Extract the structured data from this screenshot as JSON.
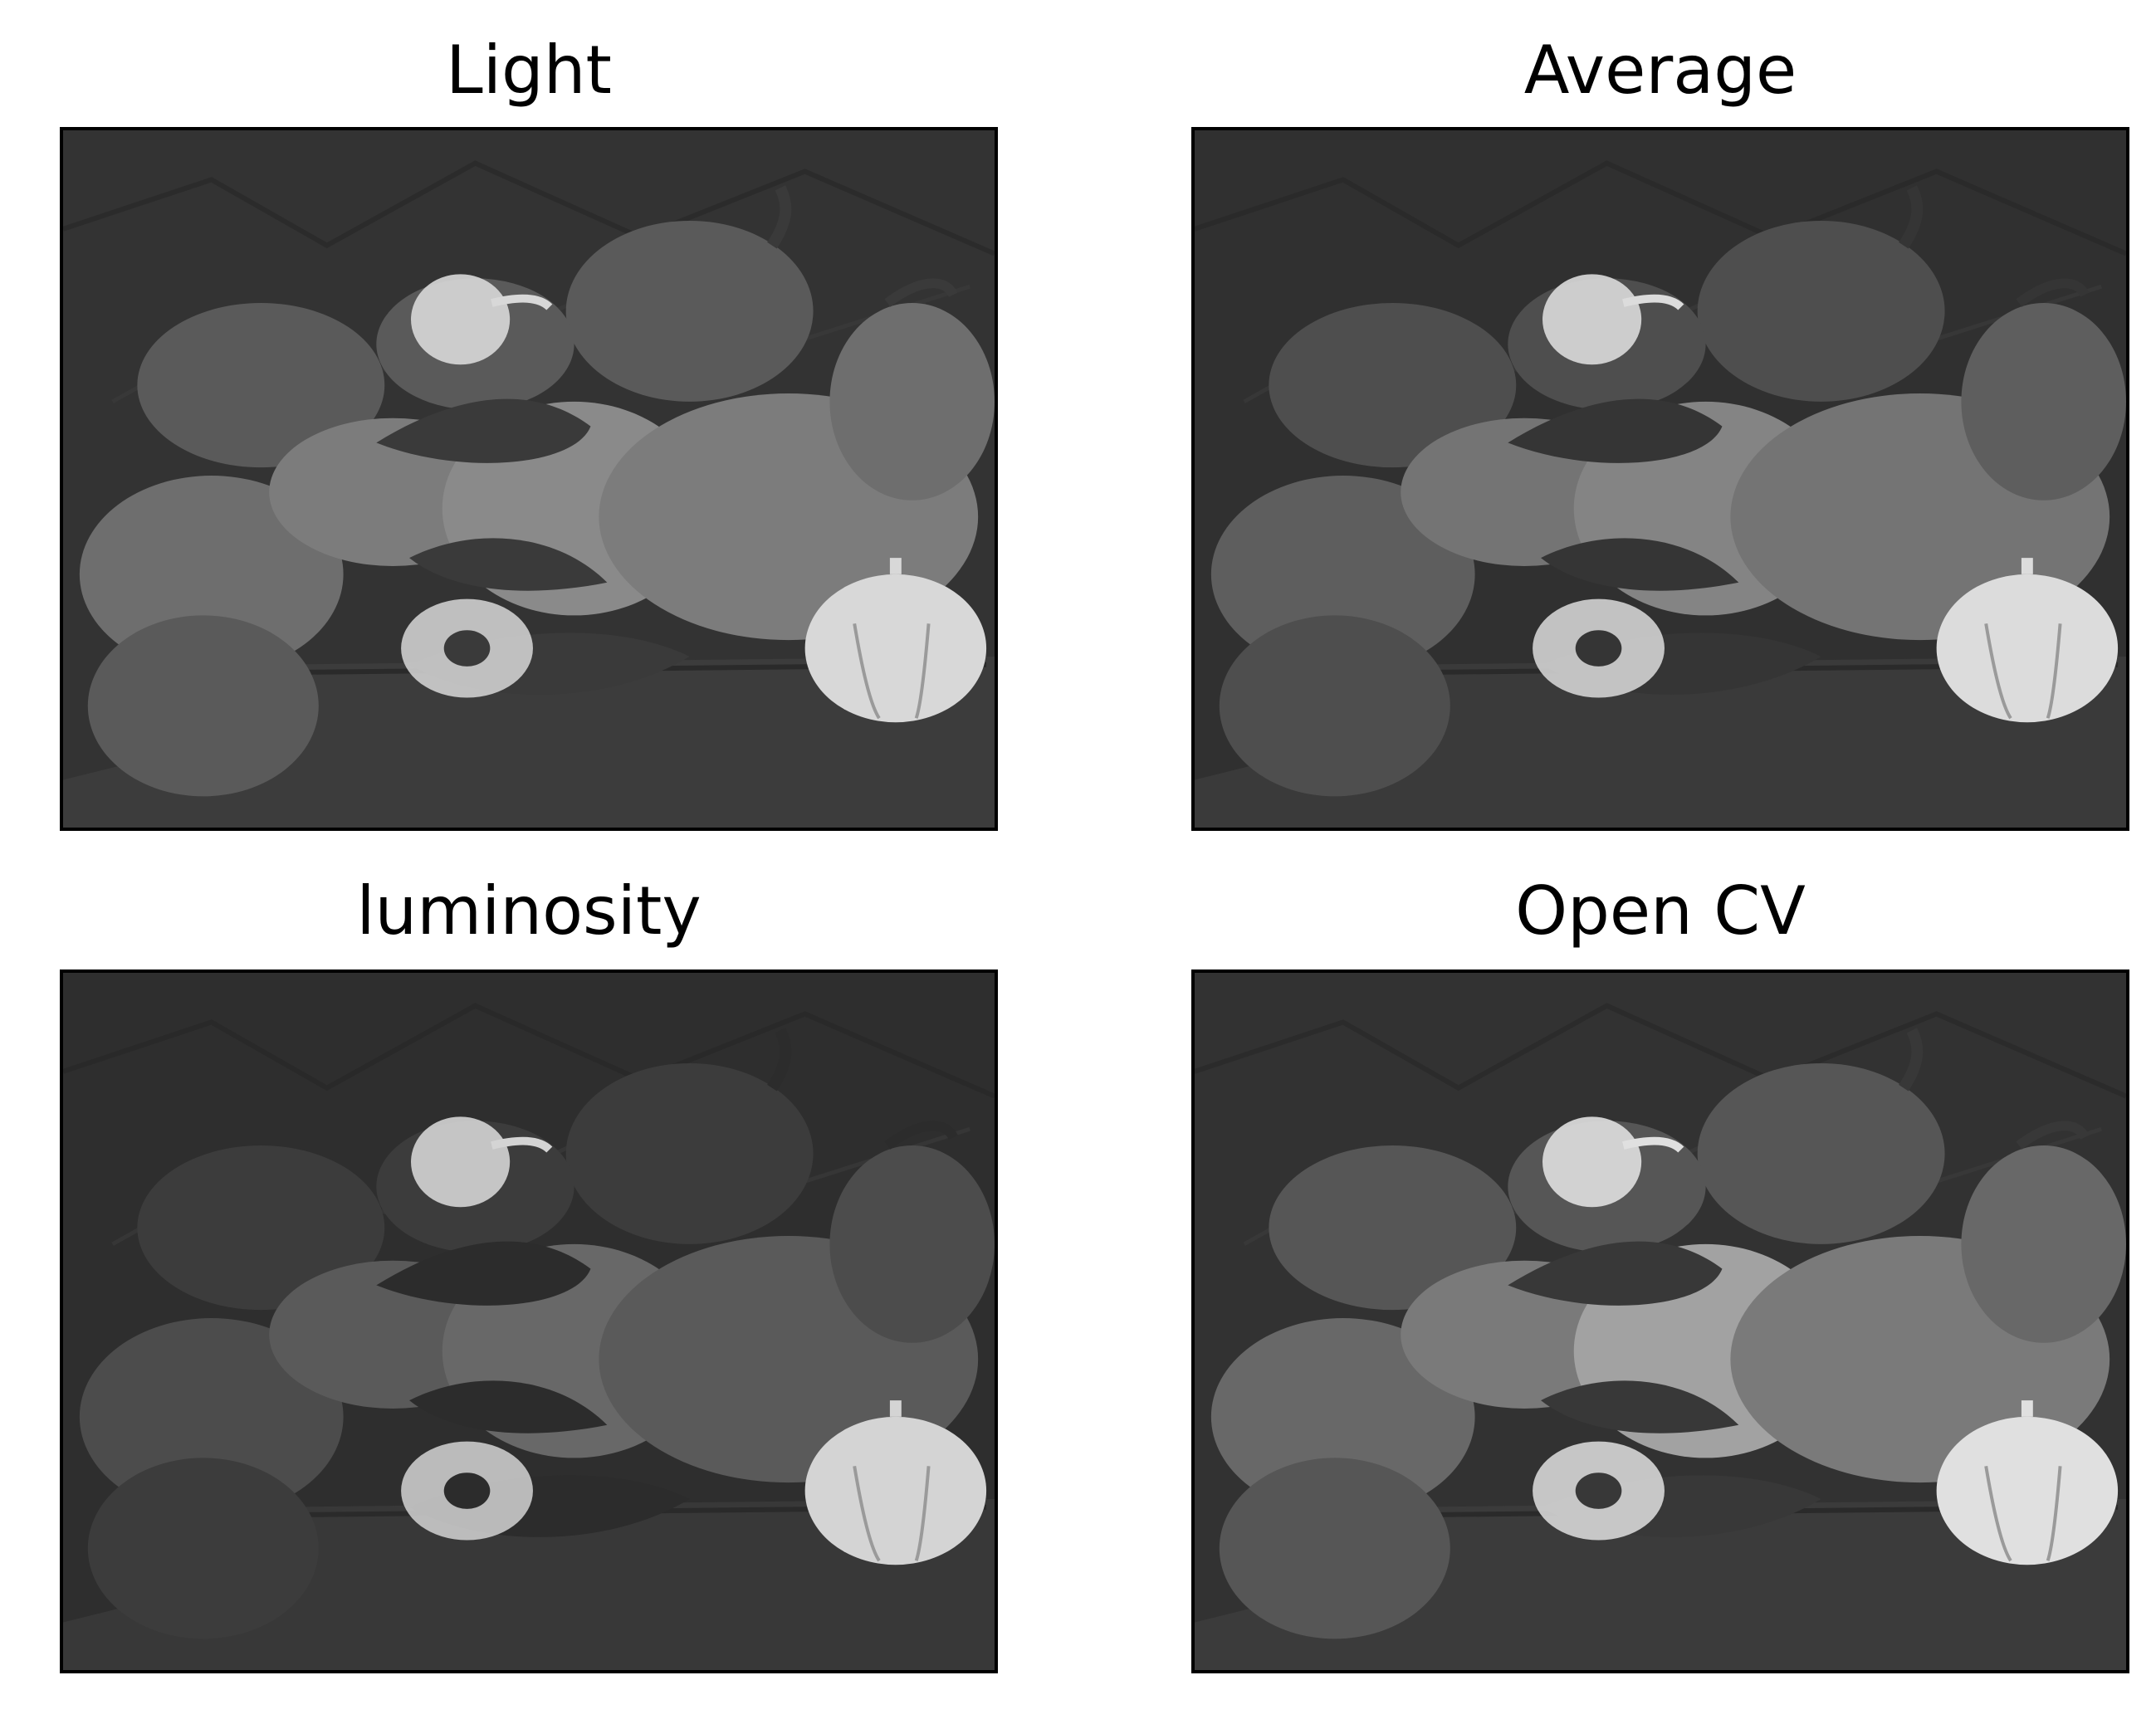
{
  "figure": {
    "panels": [
      {
        "title": "Light"
      },
      {
        "title": "Average"
      },
      {
        "title": "luminosity"
      },
      {
        "title": "Open CV"
      }
    ]
  },
  "palettes": {
    "light": {
      "bg": "#333333",
      "table": "#3c3c3c",
      "p1": "#6e6e6e",
      "p2": "#7c7c7c",
      "p3": "#5a5a5a",
      "p4": "#8a8a8a",
      "dark": "#3a3a3a",
      "bright": "#d8d8d8"
    },
    "average": {
      "bg": "#303030",
      "table": "#3a3a3a",
      "p1": "#5e5e5e",
      "p2": "#747474",
      "p3": "#4e4e4e",
      "p4": "#848484",
      "dark": "#353535",
      "bright": "#dcdcdc"
    },
    "luminosity": {
      "bg": "#2e2e2e",
      "table": "#383838",
      "p1": "#4c4c4c",
      "p2": "#5a5a5a",
      "p3": "#3c3c3c",
      "p4": "#686868",
      "dark": "#2c2c2c",
      "bright": "#d4d4d4"
    },
    "opencv": {
      "bg": "#323232",
      "table": "#3b3b3b",
      "p1": "#686868",
      "p2": "#7a7a7a",
      "p3": "#565656",
      "p4": "#a2a2a2",
      "dark": "#383838",
      "bright": "#e0e0e0"
    }
  }
}
